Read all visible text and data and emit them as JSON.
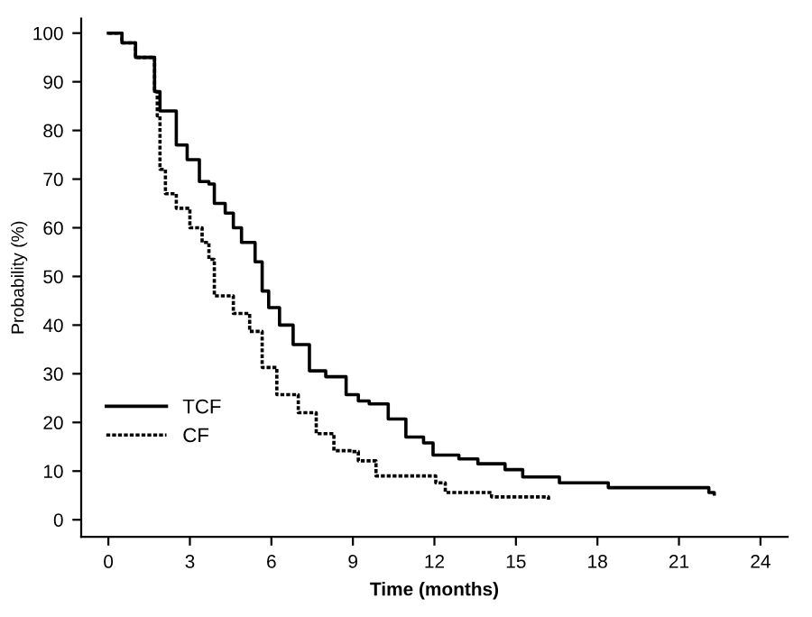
{
  "chart_data": {
    "type": "step",
    "xlabel": "Time (months)",
    "ylabel": "Probability (%)",
    "xlim": [
      -1,
      25
    ],
    "ylim": [
      -3.5,
      103
    ],
    "xticks": [
      0,
      3,
      6,
      9,
      12,
      15,
      18,
      21,
      24
    ],
    "yticks": [
      0,
      10,
      20,
      30,
      40,
      50,
      60,
      70,
      80,
      90,
      100
    ],
    "grid": false,
    "legend": "bottom left",
    "marker": "none",
    "series": [
      {
        "name": "TCF",
        "color": "#000000",
        "line_style": "solid",
        "x": [
          0,
          0.5,
          1.0,
          1.7,
          1.9,
          2.5,
          2.9,
          3.35,
          3.7,
          3.9,
          4.3,
          4.6,
          4.9,
          5.4,
          5.66,
          5.9,
          6.3,
          6.8,
          7.4,
          8.0,
          8.75,
          9.2,
          9.6,
          10.3,
          10.95,
          11.6,
          11.95,
          12.9,
          13.6,
          14.6,
          15.25,
          16.6,
          18.4,
          22.1,
          22.3
        ],
        "values": [
          100,
          98,
          95,
          88,
          84,
          77,
          74,
          69.5,
          69,
          65,
          63,
          60,
          57,
          53,
          47,
          43.6,
          40,
          36,
          30.6,
          29.4,
          25.7,
          24.4,
          23.8,
          20.7,
          17,
          15.8,
          13.3,
          12.5,
          11.5,
          10.3,
          8.8,
          7.6,
          6.6,
          5.6,
          5.3
        ]
      },
      {
        "name": "CF",
        "color": "#000000",
        "line_style": "dotted",
        "x": [
          0,
          0.5,
          1.0,
          1.7,
          1.8,
          1.9,
          2.1,
          2.5,
          3.0,
          3.45,
          3.7,
          3.9,
          4.6,
          5.2,
          5.66,
          6.2,
          6.99,
          7.65,
          8.3,
          8.97,
          9.2,
          9.85,
          12.0,
          12.05,
          12.4,
          14.1,
          16.2
        ],
        "values": [
          100,
          98,
          95,
          88,
          83,
          72,
          67,
          64,
          60,
          57,
          53.5,
          46,
          42.4,
          38.7,
          31.3,
          25.7,
          22,
          17.7,
          14.2,
          14,
          12.1,
          9,
          9,
          7.6,
          5.6,
          4.7,
          4.1
        ]
      }
    ]
  }
}
